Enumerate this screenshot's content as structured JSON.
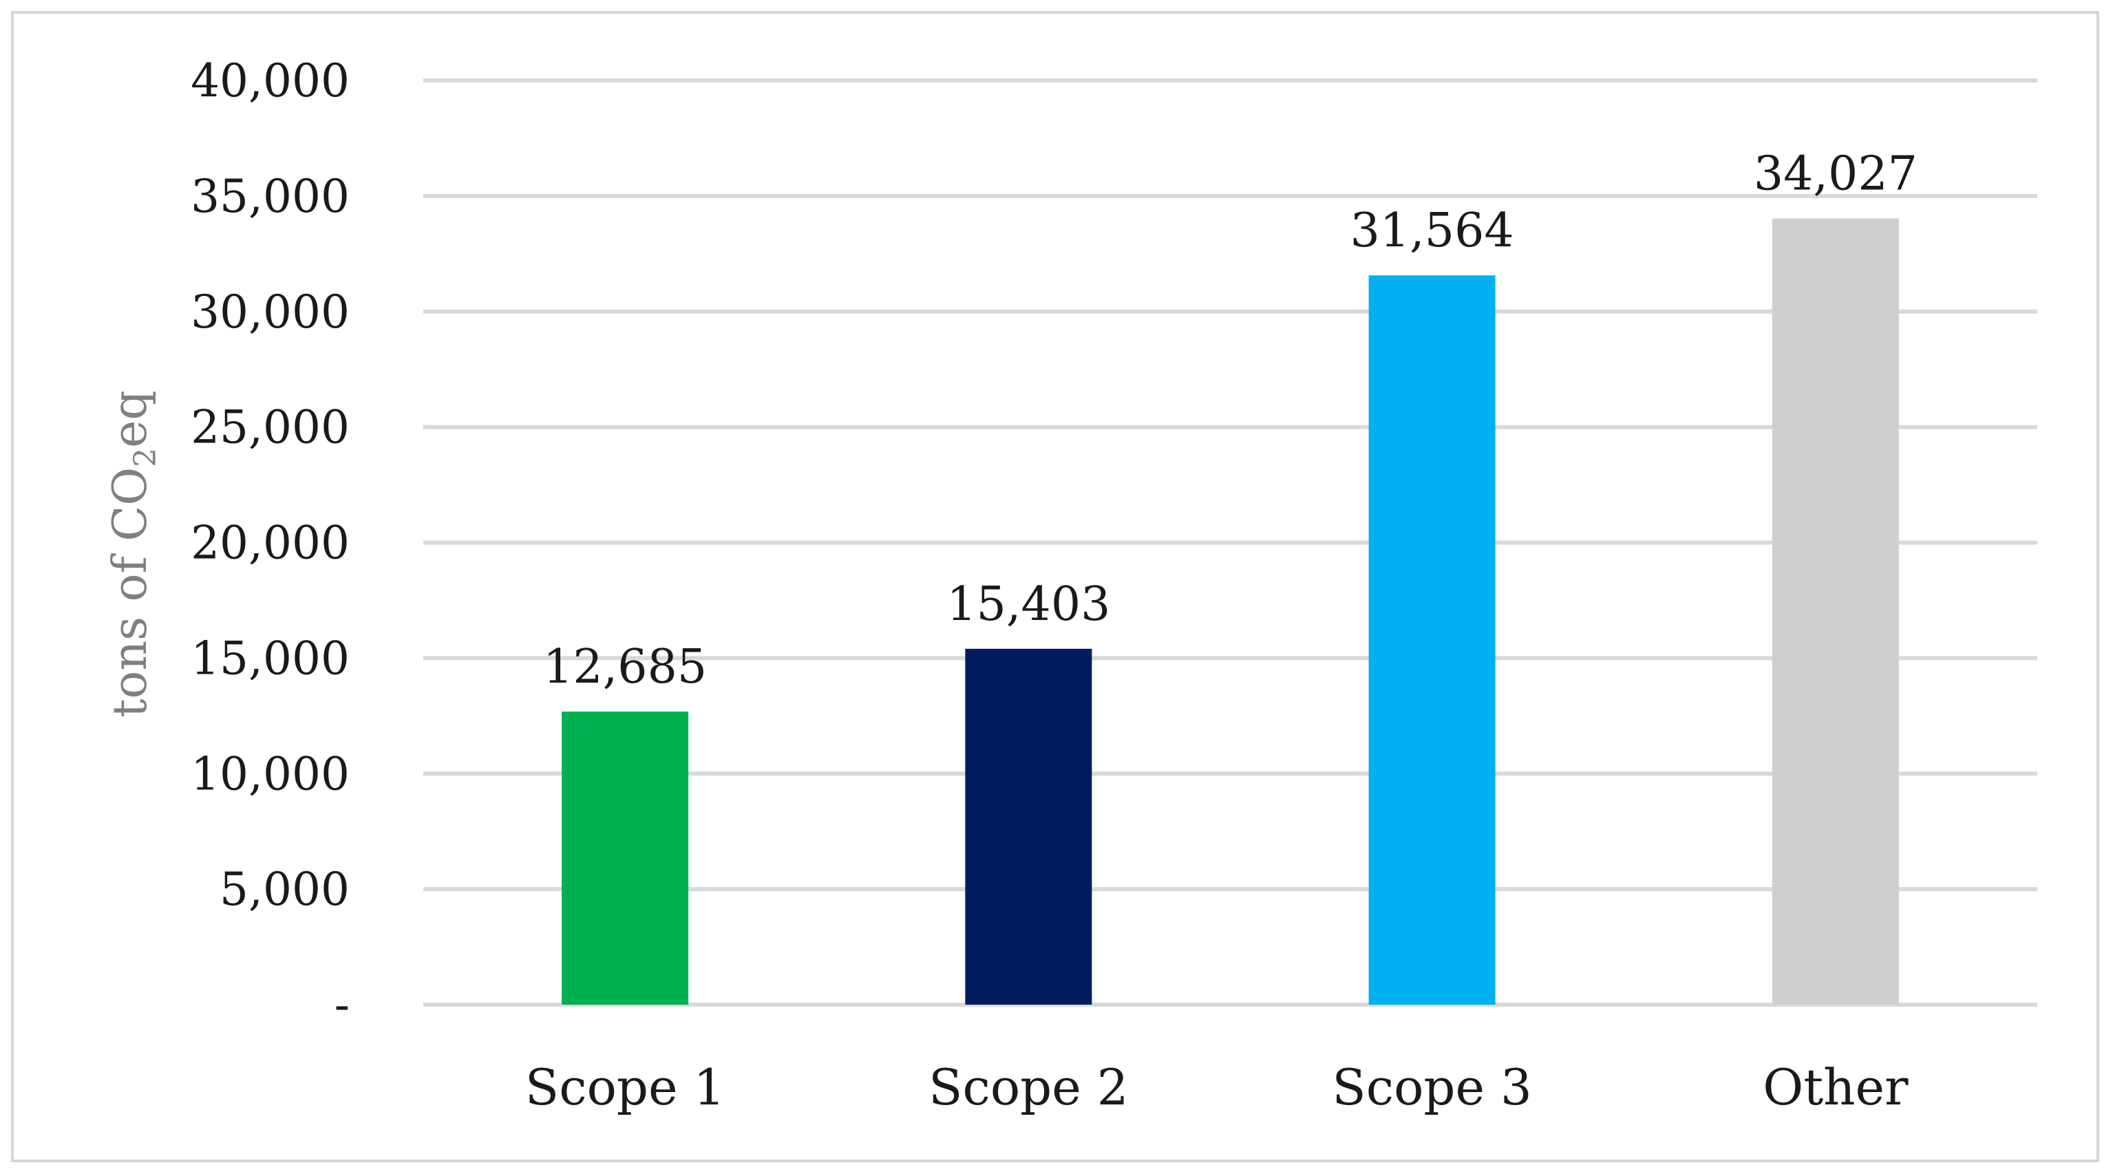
{
  "chart_data": {
    "type": "bar",
    "title": "",
    "xlabel": "",
    "ylabel": {
      "prefix": "tons of CO",
      "subscript": "2",
      "suffix": "eq"
    },
    "categories": [
      "Scope 1",
      "Scope 2",
      "Scope 3",
      "Other"
    ],
    "values": [
      12685,
      15403,
      31564,
      34027
    ],
    "data_labels": [
      "12,685",
      "15,403",
      "31,564",
      "34,027"
    ],
    "colors": [
      "#00b04f",
      "#001b5e",
      "#00b0f0",
      "#d0cece"
    ],
    "ylim": [
      0,
      40000
    ],
    "yticks": [
      0,
      5000,
      10000,
      15000,
      20000,
      25000,
      30000,
      35000,
      40000
    ],
    "ytick_labels": [
      "-",
      "5,000",
      "10,000",
      "15,000",
      "20,000",
      "25,000",
      "30,000",
      "35,000",
      "40,000"
    ],
    "grid": true,
    "legend": "none",
    "gridline_color": "#d9d9d9"
  }
}
